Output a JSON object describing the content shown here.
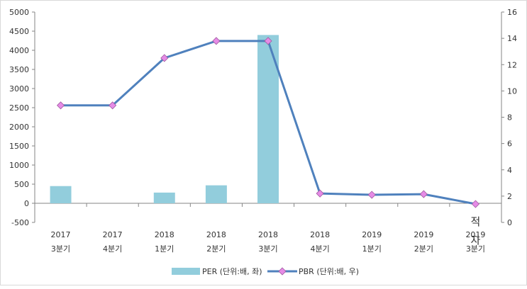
{
  "chart_data": {
    "type": "bar",
    "categories": [
      {
        "year": "2017",
        "quarter": "3분기"
      },
      {
        "year": "2017",
        "quarter": "4분기"
      },
      {
        "year": "2018",
        "quarter": "1분기"
      },
      {
        "year": "2018",
        "quarter": "2분기"
      },
      {
        "year": "2018",
        "quarter": "3분기"
      },
      {
        "year": "2018",
        "quarter": "4분기"
      },
      {
        "year": "2019",
        "quarter": "1분기"
      },
      {
        "year": "2019",
        "quarter": "2분기"
      },
      {
        "year": "2019",
        "quarter": "3분기"
      }
    ],
    "series": [
      {
        "name": "PER (단위:배, 좌)",
        "type": "bar",
        "axis": "left",
        "color": "#92cddc",
        "values": [
          450,
          0,
          280,
          470,
          4400,
          0,
          0,
          0,
          0
        ]
      },
      {
        "name": "PBR (단위:배, 우)",
        "type": "line",
        "axis": "right",
        "color": "#4f81bd",
        "marker_color": "#e68be6",
        "values": [
          8.9,
          8.9,
          12.5,
          13.8,
          13.8,
          2.2,
          2.1,
          2.15,
          1.4
        ]
      }
    ],
    "left_axis": {
      "ylim": [
        -500,
        5000
      ],
      "ticks": [
        "-500",
        "0",
        "500",
        "1000",
        "1500",
        "2000",
        "2500",
        "3000",
        "3500",
        "4000",
        "4500",
        "5000"
      ]
    },
    "right_axis": {
      "ylim": [
        0,
        16
      ],
      "ticks": [
        "0",
        "2",
        "4",
        "6",
        "8",
        "10",
        "12",
        "14",
        "16"
      ]
    },
    "annotations": [
      {
        "text": "적",
        "category_index": 8
      },
      {
        "text": "자",
        "category_index": 8
      }
    ],
    "legend_position": "bottom",
    "grid": false
  }
}
